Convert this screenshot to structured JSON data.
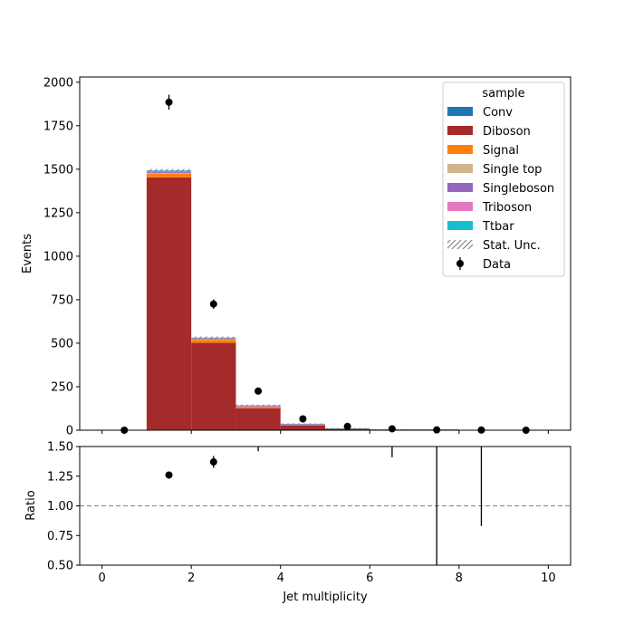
{
  "chart_data": [
    {
      "type": "bar",
      "panel": "main",
      "stacked": true,
      "ylabel": "Events",
      "xlim": [
        -0.5,
        10.5
      ],
      "ylim": [
        0,
        2030
      ],
      "yticks": [
        0,
        250,
        500,
        750,
        1000,
        1250,
        1500,
        1750,
        2000
      ],
      "bin_edges": [
        0,
        1,
        2,
        3,
        4,
        5,
        6,
        7,
        8,
        9,
        10
      ],
      "legend": {
        "title": "sample",
        "placement": "top-right"
      },
      "series": [
        {
          "name": "Conv",
          "color": "#1f77b4",
          "values": [
            0,
            3,
            2,
            1,
            0,
            0,
            0,
            0,
            0,
            0
          ]
        },
        {
          "name": "Diboson",
          "color": "#a52a2a",
          "values": [
            0,
            1450,
            500,
            125,
            28,
            8,
            4,
            2,
            0,
            0
          ]
        },
        {
          "name": "Signal",
          "color": "#ff7f0e",
          "values": [
            0,
            20,
            18,
            8,
            4,
            2,
            1,
            3,
            0,
            0
          ]
        },
        {
          "name": "Single top",
          "color": "#d2b48c",
          "values": [
            0,
            5,
            3,
            2,
            1,
            0,
            0,
            0,
            0,
            0
          ]
        },
        {
          "name": "Singleboson",
          "color": "#9467bd",
          "values": [
            0,
            5,
            2,
            1,
            0,
            0,
            0,
            0,
            0,
            0
          ]
        },
        {
          "name": "Triboson",
          "color": "#e377c2",
          "values": [
            0,
            8,
            5,
            3,
            1,
            0,
            0,
            0,
            0,
            0
          ]
        },
        {
          "name": "Ttbar",
          "color": "#17becf",
          "values": [
            0,
            2,
            2,
            3,
            3,
            1,
            0,
            0,
            0,
            0
          ]
        }
      ],
      "uncertainty": {
        "name": "Stat. Unc.",
        "values": [
          0,
          8,
          6,
          4,
          2,
          1,
          1,
          1,
          0,
          0
        ]
      },
      "data": {
        "name": "Data",
        "x": [
          0.5,
          1.5,
          2.5,
          3.5,
          4.5,
          5.5,
          6.5,
          7.5,
          8.5,
          9.5
        ],
        "y": [
          0,
          1885,
          725,
          225,
          65,
          22,
          8,
          2,
          1,
          0
        ],
        "err": [
          0,
          43,
          27,
          15,
          8,
          4.7,
          2.8,
          1.4,
          1,
          0
        ]
      }
    },
    {
      "type": "scatter",
      "panel": "ratio",
      "xlabel": "Jet multiplicity",
      "ylabel": "Ratio",
      "xlim": [
        -0.5,
        10.5
      ],
      "ylim": [
        0.5,
        1.5
      ],
      "xticks": [
        0,
        2,
        4,
        6,
        8,
        10
      ],
      "yticks": [
        "0.50",
        "0.75",
        "1.00",
        "1.25",
        "1.50"
      ],
      "reference_line": 1.0,
      "x": [
        1.5,
        2.5
      ],
      "y": [
        1.26,
        1.37
      ],
      "err": [
        0.03,
        0.05
      ],
      "offscale_error_bars": [
        {
          "x": 3.5,
          "lo": 1.46,
          "hi": 1.5
        },
        {
          "x": 6.5,
          "lo": 1.41,
          "hi": 1.5
        },
        {
          "x": 7.5,
          "lo": 0.5,
          "hi": 1.5
        },
        {
          "x": 8.5,
          "lo": 0.83,
          "hi": 1.5
        }
      ]
    }
  ]
}
